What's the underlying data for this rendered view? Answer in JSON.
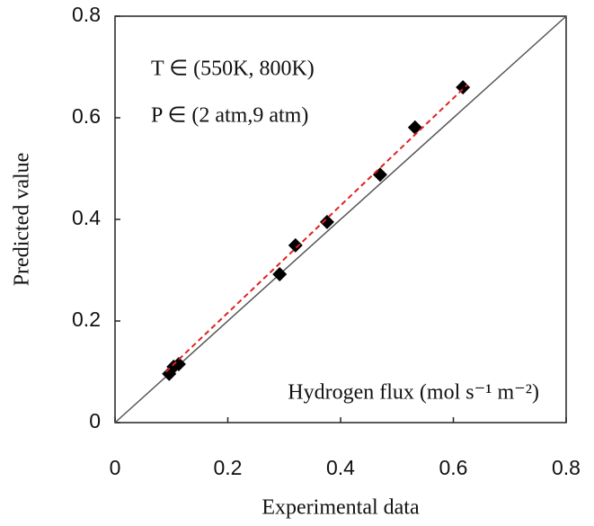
{
  "chart_data": {
    "type": "scatter",
    "xlabel": "Experimental data",
    "ylabel": "Predicted value",
    "annotations": [
      "T ∈ (550K, 800K)",
      "P ∈ (2 atm,9 atm)",
      "Hydrogen flux (mol s⁻¹ m⁻²)"
    ],
    "x": [
      0.096,
      0.104,
      0.113,
      0.292,
      0.32,
      0.376,
      0.47,
      0.532,
      0.617
    ],
    "values": [
      0.096,
      0.11,
      0.115,
      0.292,
      0.349,
      0.395,
      0.488,
      0.581,
      0.66
    ],
    "color": "#000000",
    "reference_line": {
      "x": [
        0,
        0.8
      ],
      "y": [
        0,
        0.8
      ],
      "color": "#555555"
    },
    "fit_line": {
      "x": [
        0.09,
        0.625
      ],
      "y": [
        0.1,
        0.665
      ],
      "color": "#e02020"
    },
    "xlim": [
      0,
      0.8
    ],
    "ylim": [
      0,
      0.8
    ],
    "xticks": [
      0,
      0.2,
      0.4,
      0.6,
      0.8
    ],
    "yticks": [
      0,
      0.2,
      0.4,
      0.6,
      0.8
    ],
    "grid": false
  }
}
